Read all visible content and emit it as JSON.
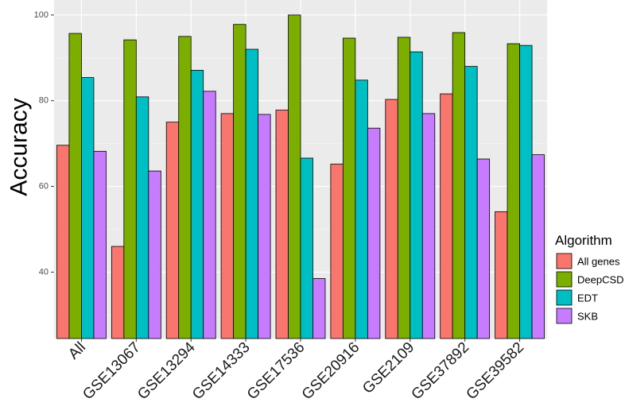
{
  "chart_data": {
    "type": "bar",
    "title": "",
    "xlabel": "",
    "ylabel": "Accuracy",
    "ylim": [
      24.5,
      103.5
    ],
    "yticks": [
      40,
      60,
      80,
      100
    ],
    "grid": true,
    "legend_position": "right",
    "legend_title": "Algorithm",
    "categories": [
      "All",
      "GSE13067",
      "GSE13294",
      "GSE14333",
      "GSE17536",
      "GSE20916",
      "GSE2109",
      "GSE37892",
      "GSE39582"
    ],
    "series": [
      {
        "name": "All genes",
        "color": "#F8766D",
        "values": [
          69.6,
          46.0,
          75.0,
          77.0,
          77.8,
          65.2,
          80.3,
          81.6,
          54.1
        ]
      },
      {
        "name": "DeepCSD",
        "color": "#7CAE00",
        "values": [
          95.7,
          94.2,
          95.0,
          97.8,
          100.0,
          94.6,
          94.8,
          95.9,
          93.3
        ]
      },
      {
        "name": "EDT",
        "color": "#00BFC4",
        "values": [
          85.4,
          80.9,
          87.1,
          92.0,
          66.6,
          84.8,
          91.4,
          88.0,
          92.9
        ]
      },
      {
        "name": "SKB",
        "color": "#C77CFF",
        "values": [
          68.2,
          63.6,
          82.2,
          76.8,
          38.5,
          73.6,
          77.0,
          66.4,
          67.4
        ]
      }
    ]
  }
}
